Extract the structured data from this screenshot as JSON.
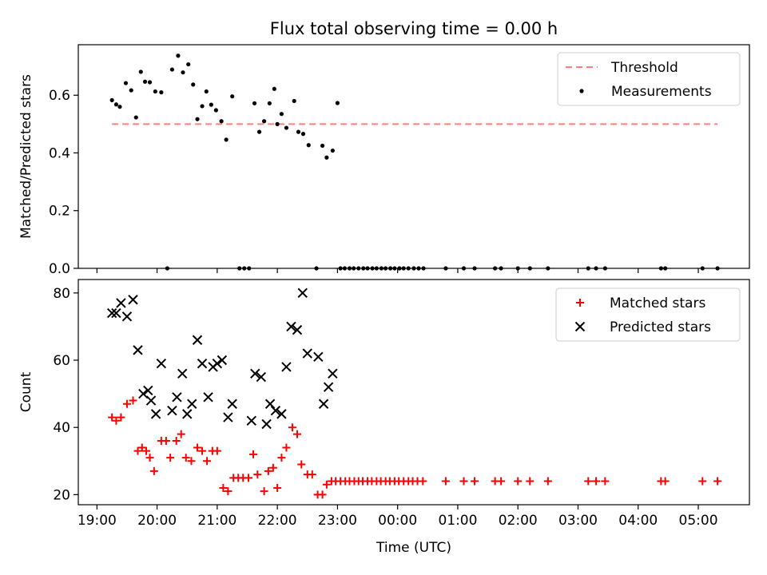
{
  "title": "Flux total observing time = 0.00 h",
  "xlabel": "Time (UTC)",
  "chart_data": [
    {
      "type": "scatter",
      "ylabel": "Matched/Predicted stars",
      "ylim": [
        0,
        0.775
      ],
      "yticks": [
        0.0,
        0.2,
        0.4,
        0.6
      ],
      "xlim": [
        18.69,
        29.85
      ],
      "xtick_values": [
        19,
        20,
        21,
        22,
        23,
        24,
        25,
        26,
        27,
        28,
        29
      ],
      "xtick_labels": [
        "19:00",
        "20:00",
        "21:00",
        "22:00",
        "23:00",
        "00:00",
        "01:00",
        "02:00",
        "03:00",
        "04:00",
        "05:00"
      ],
      "show_xtick_labels": false,
      "legend_position": "top-right",
      "threshold": {
        "name": "Threshold",
        "value": 0.5,
        "x_range": [
          19.25,
          29.32
        ],
        "color": "#ff7f7f"
      },
      "series": [
        {
          "name": "Measurements",
          "color": "#000000",
          "x": [
            19.25,
            19.32,
            19.38,
            19.48,
            19.57,
            19.65,
            19.73,
            19.8,
            19.88,
            19.97,
            20.07,
            20.17,
            20.25,
            20.35,
            20.43,
            20.52,
            20.6,
            20.67,
            20.75,
            20.82,
            20.9,
            20.98,
            21.07,
            21.15,
            21.25,
            21.37,
            21.45,
            21.53,
            21.62,
            21.7,
            21.78,
            21.87,
            21.95,
            22.0,
            22.07,
            22.15,
            22.28,
            22.35,
            22.43,
            22.52,
            22.65,
            22.75,
            22.82,
            22.92,
            23.0,
            23.05,
            23.12,
            23.2,
            23.27,
            23.35,
            23.43,
            23.5,
            23.58,
            23.65,
            23.73,
            23.8,
            23.88,
            23.95,
            24.03,
            24.1,
            24.18,
            24.27,
            24.35,
            24.43,
            24.8,
            25.1,
            25.28,
            25.62,
            25.72,
            26.0,
            26.2,
            26.5,
            27.17,
            27.3,
            27.45,
            28.38,
            28.45,
            29.07,
            29.32
          ],
          "y": [
            0.583,
            0.568,
            0.56,
            0.642,
            0.617,
            0.523,
            0.681,
            0.647,
            0.645,
            0.613,
            0.61,
            0.0,
            0.689,
            0.737,
            0.679,
            0.707,
            0.637,
            0.517,
            0.562,
            0.613,
            0.567,
            0.548,
            0.51,
            0.446,
            0.596,
            0.0,
            0.0,
            0.0,
            0.572,
            0.473,
            0.51,
            0.572,
            0.622,
            0.5,
            0.535,
            0.487,
            0.58,
            0.473,
            0.466,
            0.427,
            0.0,
            0.425,
            0.384,
            0.408,
            0.573,
            0.0,
            0.0,
            0.0,
            0.0,
            0.0,
            0.0,
            0.0,
            0.0,
            0.0,
            0.0,
            0.0,
            0.0,
            0.0,
            0.0,
            0.0,
            0.0,
            0.0,
            0.0,
            0.0,
            0.0,
            0.0,
            0.0,
            0.0,
            0.0,
            0.0,
            0.0,
            0.0,
            0.0,
            0.0,
            0.0,
            0.0,
            0.0,
            0.0,
            0.0
          ]
        }
      ]
    },
    {
      "type": "scatter",
      "ylabel": "Count",
      "ylim": [
        17,
        84
      ],
      "yticks": [
        20,
        40,
        60,
        80
      ],
      "xlim": [
        18.69,
        29.85
      ],
      "xtick_values": [
        19,
        20,
        21,
        22,
        23,
        24,
        25,
        26,
        27,
        28,
        29
      ],
      "xtick_labels": [
        "19:00",
        "20:00",
        "21:00",
        "22:00",
        "23:00",
        "00:00",
        "01:00",
        "02:00",
        "03:00",
        "04:00",
        "05:00"
      ],
      "show_xtick_labels": true,
      "legend_position": "top-right",
      "series": [
        {
          "name": "Matched stars",
          "marker": "plus",
          "color": "#ff0000",
          "x": [
            19.25,
            19.32,
            19.4,
            19.5,
            19.6,
            19.68,
            19.75,
            19.82,
            19.88,
            19.95,
            20.07,
            20.15,
            20.22,
            20.32,
            20.4,
            20.48,
            20.57,
            20.67,
            20.75,
            20.83,
            20.92,
            21.0,
            21.1,
            21.18,
            21.27,
            21.35,
            21.43,
            21.52,
            21.6,
            21.67,
            21.78,
            21.85,
            21.93,
            22.0,
            22.07,
            22.15,
            22.25,
            22.33,
            22.4,
            22.5,
            22.58,
            22.67,
            22.75,
            22.82,
            22.9,
            22.97,
            23.05,
            23.13,
            23.2,
            23.28,
            23.35,
            23.42,
            23.5,
            23.57,
            23.65,
            23.72,
            23.8,
            23.87,
            23.95,
            24.02,
            24.1,
            24.18,
            24.25,
            24.33,
            24.42,
            24.8,
            25.1,
            25.28,
            25.62,
            25.72,
            26.0,
            26.2,
            26.5,
            27.17,
            27.3,
            27.45,
            28.38,
            28.45,
            29.07,
            29.32
          ],
          "y": [
            43,
            42,
            43,
            47,
            48,
            33,
            34,
            33,
            31,
            27,
            36,
            36,
            31,
            36,
            38,
            31,
            30,
            34,
            33,
            30,
            33,
            33,
            22,
            21,
            25,
            25,
            25,
            25,
            32,
            26,
            21,
            27,
            28,
            22,
            31,
            34,
            40,
            38,
            29,
            26,
            26,
            20,
            20,
            23,
            24,
            24,
            24,
            24,
            24,
            24,
            24,
            24,
            24,
            24,
            24,
            24,
            24,
            24,
            24,
            24,
            24,
            24,
            24,
            24,
            24,
            24,
            24,
            24,
            24,
            24,
            24,
            24,
            24,
            24,
            24,
            24,
            24,
            24,
            24,
            24
          ]
        },
        {
          "name": "Predicted stars",
          "marker": "x",
          "color": "#000000",
          "x": [
            19.25,
            19.32,
            19.4,
            19.5,
            19.6,
            19.68,
            19.77,
            19.85,
            19.9,
            19.98,
            20.07,
            20.25,
            20.33,
            20.42,
            20.5,
            20.58,
            20.67,
            20.75,
            20.85,
            20.93,
            21.0,
            21.08,
            21.18,
            21.25,
            21.57,
            21.63,
            21.73,
            21.82,
            21.88,
            21.97,
            22.07,
            22.15,
            22.23,
            22.33,
            22.42,
            22.5,
            22.68,
            22.77,
            22.85,
            22.92
          ],
          "y": [
            74,
            74,
            77,
            73,
            78,
            63,
            50,
            51,
            48,
            44,
            59,
            45,
            49,
            56,
            44,
            47,
            66,
            59,
            49,
            58,
            59,
            60,
            43,
            47,
            42,
            56,
            55,
            41,
            47,
            45,
            44,
            58,
            70,
            69,
            80,
            62,
            61,
            47,
            52,
            56
          ]
        }
      ]
    }
  ]
}
